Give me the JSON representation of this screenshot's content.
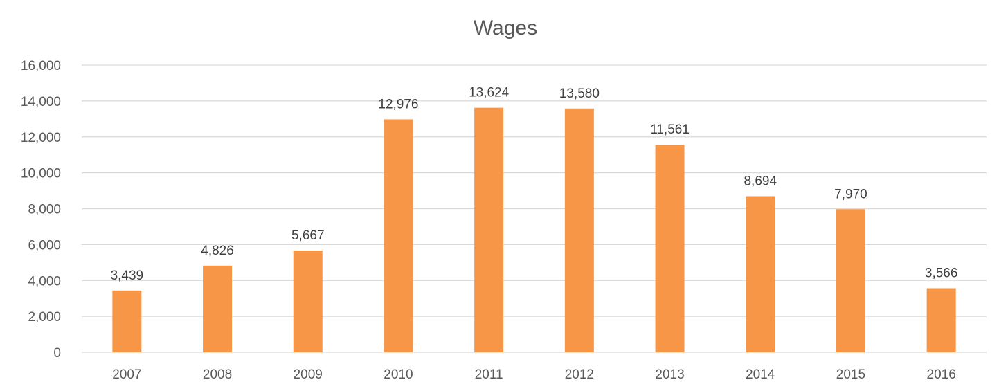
{
  "chart_data": {
    "type": "bar",
    "title": "Wages",
    "xlabel": "",
    "ylabel": "",
    "categories": [
      "2007",
      "2008",
      "2009",
      "2010",
      "2011",
      "2012",
      "2013",
      "2014",
      "2015",
      "2016"
    ],
    "values": [
      3439,
      4826,
      5667,
      12976,
      13624,
      13580,
      11561,
      8694,
      7970,
      3566
    ],
    "value_labels": [
      "3,439",
      "4,826",
      "5,667",
      "12,976",
      "13,624",
      "13,580",
      "11,561",
      "8,694",
      "7,970",
      "3,566"
    ],
    "ylim": [
      0,
      16000
    ],
    "yticks": [
      0,
      2000,
      4000,
      6000,
      8000,
      10000,
      12000,
      14000,
      16000
    ],
    "ytick_labels": [
      "0",
      "2,000",
      "4,000",
      "6,000",
      "8,000",
      "10,000",
      "12,000",
      "14,000",
      "16,000"
    ],
    "grid": true,
    "legend": "none",
    "bar_color": "#f79646"
  }
}
